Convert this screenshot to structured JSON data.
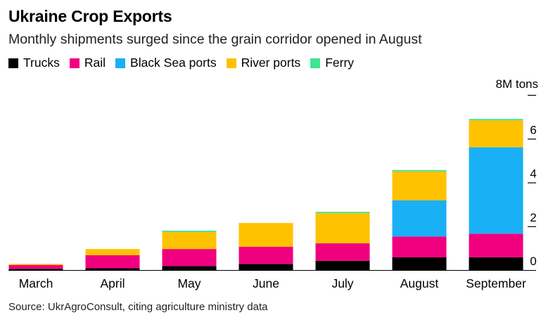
{
  "chart_data": {
    "type": "bar",
    "stacked": true,
    "title": "Ukraine Crop Exports",
    "subtitle": "Monthly shipments surged since the grain corridor opened in August",
    "unit_label": "8M tons",
    "categories": [
      "March",
      "April",
      "May",
      "June",
      "July",
      "August",
      "September"
    ],
    "series": [
      {
        "name": "Trucks",
        "color": "#000000",
        "values": [
          0.05,
          0.08,
          0.18,
          0.28,
          0.42,
          0.58,
          0.58
        ]
      },
      {
        "name": "Rail",
        "color": "#f0007f",
        "values": [
          0.18,
          0.6,
          0.78,
          0.78,
          0.8,
          0.95,
          1.08
        ]
      },
      {
        "name": "Black Sea ports",
        "color": "#1ab0f5",
        "values": [
          0,
          0,
          0,
          0,
          0,
          1.65,
          3.95
        ]
      },
      {
        "name": "River ports",
        "color": "#ffc200",
        "values": [
          0.05,
          0.28,
          0.78,
          1.09,
          1.38,
          1.33,
          1.23
        ]
      },
      {
        "name": "Ferry",
        "color": "#3fe593",
        "values": [
          0,
          0,
          0.06,
          0,
          0.06,
          0.06,
          0.06
        ]
      }
    ],
    "y_ticks": [
      {
        "value": 0,
        "label": "0"
      },
      {
        "value": 2,
        "label": "2"
      },
      {
        "value": 4,
        "label": "4"
      },
      {
        "value": 6,
        "label": "6"
      },
      {
        "value": 8,
        "label": ""
      }
    ],
    "ylim": [
      0,
      8
    ],
    "legend_position": "top-left",
    "source": "Source: UkrAgroConsult, citing agriculture ministry data"
  }
}
